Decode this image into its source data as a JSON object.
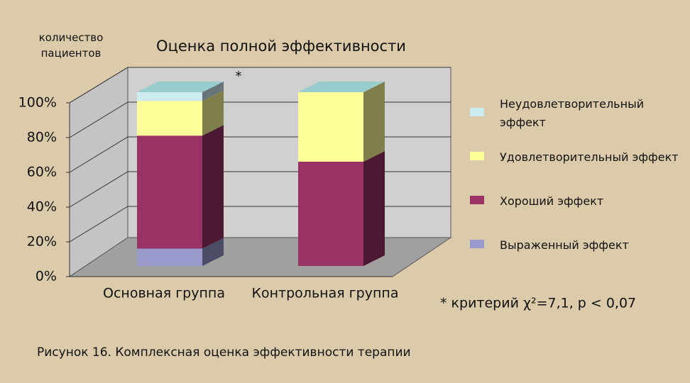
{
  "chart_data": {
    "type": "bar3d_stacked",
    "title": "Оценка полной эффективности",
    "y_label": "количество пациентов",
    "annotation": "*",
    "note": "* критерий χ²=7,1, p < 0,07",
    "caption": "Рисунок 16. Комплексная оценка эффективности терапии",
    "categories": [
      "Основная группа",
      "Контрольная группа"
    ],
    "series": [
      {
        "name": "Выраженный эффект",
        "color": "#9999cc",
        "values": [
          10,
          0
        ]
      },
      {
        "name": "Хороший эффект",
        "color": "#993366",
        "values": [
          65,
          60
        ]
      },
      {
        "name": "Удовлетворительный эффект",
        "color": "#ffff99",
        "values": [
          20,
          40
        ]
      },
      {
        "name": "Неудовлетворительный эффект",
        "color": "#ccecf0",
        "values": [
          5,
          0
        ]
      }
    ],
    "ylim": [
      0,
      100
    ],
    "yticks": [
      {
        "value": 0,
        "label": "0%"
      },
      {
        "value": 20,
        "label": "20%"
      },
      {
        "value": 40,
        "label": "40%"
      },
      {
        "value": 60,
        "label": "60%"
      },
      {
        "value": 80,
        "label": "80%"
      },
      {
        "value": 100,
        "label": "100%"
      }
    ],
    "grid": true
  }
}
